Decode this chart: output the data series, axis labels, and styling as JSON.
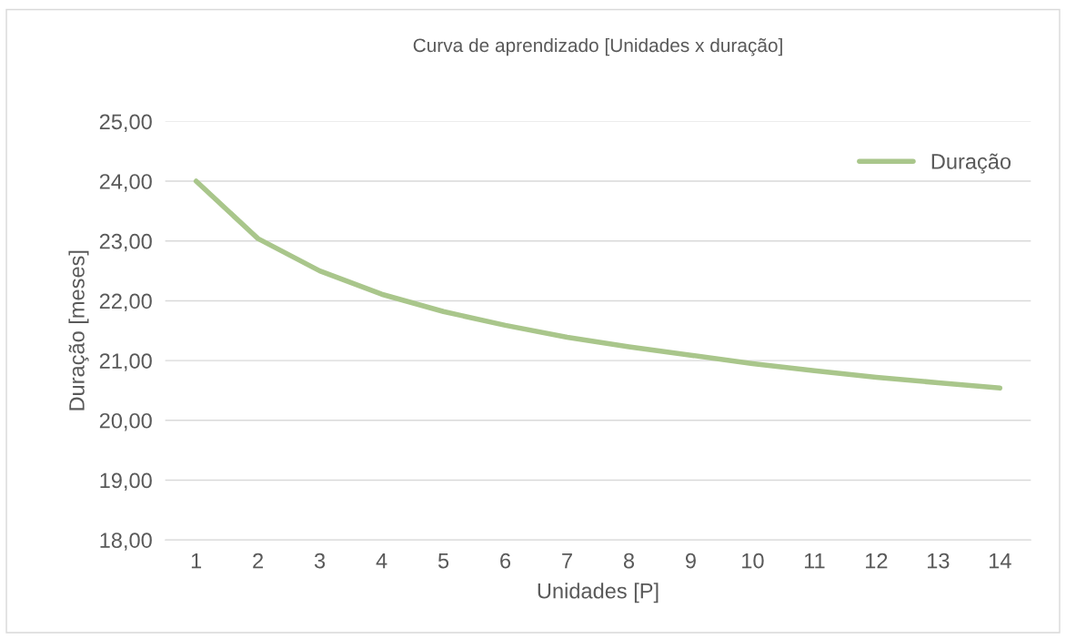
{
  "chart_data": {
    "type": "line",
    "title": "Curva de aprendizado [Unidades x duração]",
    "xlabel": "Unidades [P]",
    "ylabel": "Duração [meses]",
    "categories": [
      "1",
      "2",
      "3",
      "4",
      "5",
      "6",
      "7",
      "8",
      "9",
      "10",
      "11",
      "12",
      "13",
      "14"
    ],
    "series": [
      {
        "name": "Duração",
        "color": "#a9c68b",
        "values": [
          24.0,
          23.04,
          22.5,
          22.11,
          21.82,
          21.59,
          21.39,
          21.23,
          21.09,
          20.95,
          20.83,
          20.72,
          20.63,
          20.54
        ]
      }
    ],
    "ylim": [
      18,
      25
    ],
    "yticks": [
      {
        "value": 18,
        "label": "18,00"
      },
      {
        "value": 19,
        "label": "19,00"
      },
      {
        "value": 20,
        "label": "20,00"
      },
      {
        "value": 21,
        "label": "21,00"
      },
      {
        "value": 22,
        "label": "22,00"
      },
      {
        "value": 23,
        "label": "23,00"
      },
      {
        "value": 24,
        "label": "24,00"
      },
      {
        "value": 25,
        "label": "25,00"
      }
    ],
    "grid": "y",
    "legend": "top right",
    "marker": "none",
    "line_style": "solid"
  }
}
